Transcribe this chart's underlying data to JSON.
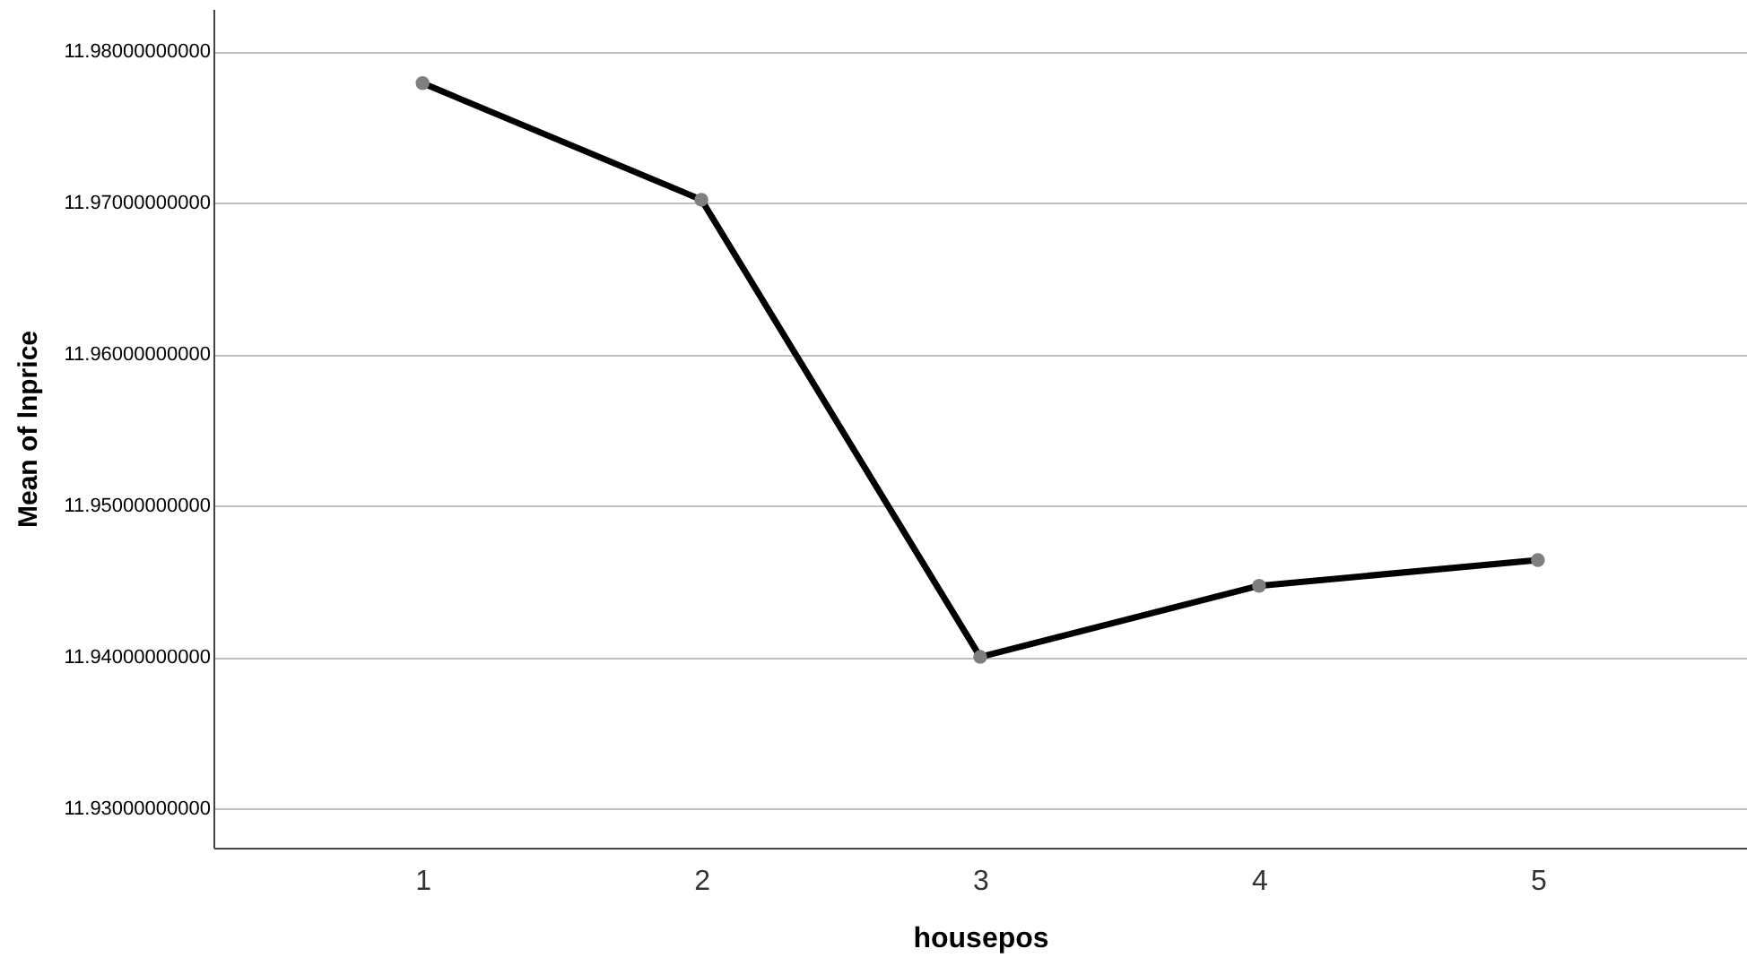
{
  "chart_data": {
    "type": "line",
    "xlabel": "housepos",
    "ylabel": "Mean of lnprice",
    "categories": [
      "1",
      "2",
      "3",
      "4",
      "5"
    ],
    "series": [
      {
        "color": "#000000",
        "values": [
          11.9779,
          11.9702,
          11.94,
          11.9447,
          11.9464
        ]
      }
    ],
    "ylim": [
      11.9274,
      11.9828
    ],
    "yticks": [
      {
        "value": 11.93,
        "label": "11.93000000000"
      },
      {
        "value": 11.94,
        "label": "11.94000000000"
      },
      {
        "value": 11.95,
        "label": "11.95000000000"
      },
      {
        "value": 11.96,
        "label": "11.96000000000"
      },
      {
        "value": 11.97,
        "label": "11.97000000000"
      },
      {
        "value": 11.98,
        "label": "11.98000000000"
      }
    ],
    "grid": "y",
    "marker": "circle",
    "line_style": "solid"
  }
}
